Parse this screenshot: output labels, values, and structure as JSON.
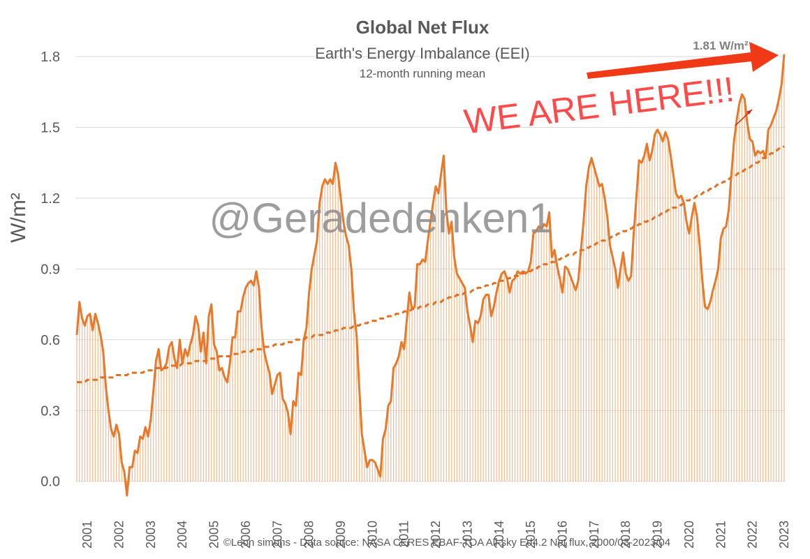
{
  "chart_data": {
    "type": "line",
    "title": "Global Net Flux",
    "subtitle": "Earth's Energy Imbalance (EEI)",
    "note": "12-month running mean",
    "y_label": "W/m²",
    "watermark": "@Geradedenken1",
    "annotation": "WE ARE HERE!!!",
    "end_label": "1.81 W/m²",
    "source": "©Leon simons - Data source: NASA CERES EBAF-TOA All-sky Ed4.2 Net flux, 2000/03-2023/04",
    "ylim": [
      -0.06,
      1.8
    ],
    "yticks": [
      {
        "value": 0,
        "label": "0.0"
      },
      0.3,
      0.6,
      0.9,
      1.2,
      1.5,
      1.8
    ],
    "grid": true,
    "categories": [
      null,
      null,
      null,
      null,
      "2001",
      null,
      null,
      null,
      null,
      null,
      null,
      null,
      null,
      null,
      null,
      null,
      "2002",
      null,
      null,
      null,
      null,
      null,
      null,
      null,
      null,
      null,
      null,
      null,
      "2003",
      null,
      null,
      null,
      null,
      null,
      null,
      null,
      null,
      null,
      null,
      null,
      "2004",
      null,
      null,
      null,
      null,
      null,
      null,
      null,
      null,
      null,
      null,
      null,
      "2005",
      null,
      null,
      null,
      null,
      null,
      null,
      null,
      null,
      null,
      null,
      null,
      "2006",
      null,
      null,
      null,
      null,
      null,
      null,
      null,
      null,
      null,
      null,
      null,
      "2007",
      null,
      null,
      null,
      null,
      null,
      null,
      null,
      null,
      null,
      null,
      null,
      "2008",
      null,
      null,
      null,
      null,
      null,
      null,
      null,
      null,
      null,
      null,
      null,
      "2009",
      null,
      null,
      null,
      null,
      null,
      null,
      null,
      null,
      null,
      null,
      null,
      "2010",
      null,
      null,
      null,
      null,
      null,
      null,
      null,
      null,
      null,
      null,
      null,
      "2011",
      null,
      null,
      null,
      null,
      null,
      null,
      null,
      null,
      null,
      null,
      null,
      "2012",
      null,
      null,
      null,
      null,
      null,
      null,
      null,
      null,
      null,
      null,
      null,
      "2013",
      null,
      null,
      null,
      null,
      null,
      null,
      null,
      null,
      null,
      null,
      null,
      "2014",
      null,
      null,
      null,
      null,
      null,
      null,
      null,
      null,
      null,
      null,
      null,
      "2015",
      null,
      null,
      null,
      null,
      null,
      null,
      null,
      null,
      null,
      null,
      null,
      "2016",
      null,
      null,
      null,
      null,
      null,
      null,
      null,
      null,
      null,
      null,
      null,
      "2017",
      null,
      null,
      null,
      null,
      null,
      null,
      null,
      null,
      null,
      null,
      null,
      "2018",
      null,
      null,
      null,
      null,
      null,
      null,
      null,
      null,
      null,
      null,
      null,
      "2019",
      null,
      null,
      null,
      null,
      null,
      null,
      null,
      null,
      null,
      null,
      null,
      "2020",
      null,
      null,
      null,
      null,
      null,
      null,
      null,
      null,
      null,
      null,
      null,
      "2021",
      null,
      null,
      null,
      null,
      null,
      null,
      null,
      null,
      null,
      null,
      null,
      "2022",
      null,
      null,
      null,
      null,
      null,
      null,
      null,
      null,
      null,
      null,
      null,
      "2023"
    ],
    "series": [
      {
        "color": "#e8782a",
        "bar_color": "#f4b98c",
        "bars": true,
        "values": [
          0.62,
          0.76,
          0.69,
          0.66,
          0.7,
          0.71,
          0.64,
          0.71,
          0.67,
          0.62,
          0.55,
          0.4,
          0.3,
          0.22,
          0.19,
          0.24,
          0.2,
          0.08,
          0.04,
          -0.06,
          0.06,
          0.06,
          0.13,
          0.12,
          0.19,
          0.18,
          0.23,
          0.19,
          0.26,
          0.38,
          0.51,
          0.56,
          0.47,
          0.48,
          0.5,
          0.57,
          0.59,
          0.52,
          0.48,
          0.6,
          0.5,
          0.56,
          0.53,
          0.58,
          0.62,
          0.7,
          0.66,
          0.55,
          0.63,
          0.5,
          0.7,
          0.75,
          0.58,
          0.55,
          0.47,
          0.48,
          0.44,
          0.42,
          0.5,
          0.61,
          0.61,
          0.72,
          0.72,
          0.78,
          0.82,
          0.84,
          0.85,
          0.83,
          0.89,
          0.82,
          0.65,
          0.55,
          0.5,
          0.46,
          0.37,
          0.41,
          0.45,
          0.46,
          0.35,
          0.33,
          0.29,
          0.2,
          0.34,
          0.32,
          0.46,
          0.45,
          0.6,
          0.65,
          0.8,
          0.9,
          0.96,
          1.02,
          1.18,
          1.25,
          1.28,
          1.26,
          1.28,
          1.26,
          1.35,
          1.3,
          1.2,
          1.1,
          1.04,
          1.0,
          0.9,
          0.72,
          0.62,
          0.4,
          0.2,
          0.13,
          0.06,
          0.09,
          0.09,
          0.08,
          0.05,
          0.02,
          0.18,
          0.22,
          0.32,
          0.34,
          0.48,
          0.5,
          0.53,
          0.59,
          0.56,
          0.68,
          0.8,
          0.73,
          0.74,
          0.92,
          0.92,
          0.94,
          0.93,
          1.02,
          1.1,
          1.18,
          1.25,
          1.22,
          1.3,
          1.38,
          1.15,
          1.05,
          1.1,
          0.95,
          0.88,
          0.86,
          0.84,
          0.82,
          0.72,
          0.66,
          0.59,
          0.68,
          0.67,
          0.7,
          0.77,
          0.79,
          0.79,
          0.7,
          0.74,
          0.8,
          0.85,
          0.88,
          0.89,
          0.86,
          0.8,
          0.85,
          0.86,
          0.89,
          0.88,
          0.89,
          0.88,
          0.89,
          0.93,
          1.05,
          1.06,
          1.08,
          1.07,
          1.09,
          1.08,
          1.14,
          0.95,
          0.98,
          0.91,
          0.86,
          0.8,
          0.91,
          0.9,
          0.87,
          0.84,
          0.81,
          0.85,
          0.98,
          1.1,
          1.25,
          1.33,
          1.37,
          1.33,
          1.29,
          1.25,
          1.26,
          1.2,
          1.12,
          1.0,
          0.95,
          0.9,
          0.82,
          0.9,
          0.97,
          0.88,
          0.85,
          0.87,
          1.05,
          1.2,
          1.36,
          1.35,
          1.38,
          1.43,
          1.36,
          1.4,
          1.47,
          1.49,
          1.47,
          1.44,
          1.48,
          1.45,
          1.38,
          1.3,
          1.22,
          1.2,
          1.21,
          1.18,
          1.1,
          1.05,
          1.12,
          1.18,
          1.12,
          1.0,
          0.85,
          0.74,
          0.73,
          0.76,
          0.81,
          0.85,
          0.9,
          1.03,
          1.07,
          1.08,
          1.15,
          1.3,
          1.44,
          1.53,
          1.6,
          1.64,
          1.62,
          1.52,
          1.45,
          1.44,
          1.38,
          1.4,
          1.39,
          1.4,
          1.37,
          1.49,
          1.51,
          1.54,
          1.57,
          1.62,
          1.68,
          1.81
        ]
      },
      {
        "color": "#e07020",
        "dashed": true,
        "values": [
          0.42,
          0.42,
          0.42,
          0.42,
          0.43,
          0.43,
          0.43,
          0.43,
          0.43,
          0.44,
          0.44,
          0.44,
          0.44,
          0.44,
          0.44,
          0.45,
          0.45,
          0.45,
          0.45,
          0.45,
          0.46,
          0.46,
          0.46,
          0.46,
          0.46,
          0.46,
          0.47,
          0.47,
          0.47,
          0.47,
          0.48,
          0.48,
          0.48,
          0.48,
          0.48,
          0.49,
          0.49,
          0.49,
          0.49,
          0.49,
          0.5,
          0.5,
          0.5,
          0.5,
          0.5,
          0.51,
          0.51,
          0.51,
          0.51,
          0.51,
          0.52,
          0.52,
          0.52,
          0.52,
          0.53,
          0.53,
          0.53,
          0.53,
          0.53,
          0.54,
          0.54,
          0.54,
          0.54,
          0.55,
          0.55,
          0.55,
          0.55,
          0.56,
          0.56,
          0.56,
          0.56,
          0.57,
          0.57,
          0.57,
          0.57,
          0.58,
          0.58,
          0.58,
          0.58,
          0.59,
          0.59,
          0.59,
          0.59,
          0.6,
          0.6,
          0.6,
          0.6,
          0.61,
          0.61,
          0.61,
          0.62,
          0.62,
          0.62,
          0.62,
          0.63,
          0.63,
          0.63,
          0.63,
          0.64,
          0.64,
          0.64,
          0.65,
          0.65,
          0.65,
          0.65,
          0.66,
          0.66,
          0.66,
          0.67,
          0.67,
          0.67,
          0.68,
          0.68,
          0.68,
          0.68,
          0.69,
          0.69,
          0.69,
          0.7,
          0.7,
          0.7,
          0.71,
          0.71,
          0.71,
          0.72,
          0.72,
          0.72,
          0.73,
          0.73,
          0.73,
          0.74,
          0.74,
          0.74,
          0.75,
          0.75,
          0.75,
          0.76,
          0.76,
          0.76,
          0.77,
          0.77,
          0.78,
          0.78,
          0.78,
          0.79,
          0.79,
          0.79,
          0.8,
          0.8,
          0.8,
          0.81,
          0.81,
          0.82,
          0.82,
          0.82,
          0.83,
          0.83,
          0.83,
          0.84,
          0.84,
          0.85,
          0.85,
          0.85,
          0.86,
          0.86,
          0.87,
          0.87,
          0.87,
          0.88,
          0.88,
          0.89,
          0.89,
          0.89,
          0.9,
          0.9,
          0.91,
          0.91,
          0.92,
          0.92,
          0.92,
          0.93,
          0.93,
          0.94,
          0.94,
          0.95,
          0.95,
          0.96,
          0.96,
          0.96,
          0.97,
          0.97,
          0.98,
          0.98,
          0.99,
          0.99,
          1.0,
          1.0,
          1.01,
          1.01,
          1.02,
          1.02,
          1.03,
          1.03,
          1.04,
          1.04,
          1.05,
          1.05,
          1.06,
          1.06,
          1.07,
          1.07,
          1.08,
          1.08,
          1.09,
          1.09,
          1.1,
          1.1,
          1.11,
          1.11,
          1.12,
          1.12,
          1.13,
          1.14,
          1.14,
          1.15,
          1.15,
          1.16,
          1.16,
          1.17,
          1.17,
          1.18,
          1.19,
          1.19,
          1.2,
          1.2,
          1.21,
          1.21,
          1.22,
          1.23,
          1.23,
          1.24,
          1.24,
          1.25,
          1.26,
          1.26,
          1.27,
          1.27,
          1.28,
          1.29,
          1.29,
          1.3,
          1.31,
          1.31,
          1.32,
          1.33,
          1.33,
          1.34,
          1.35,
          1.35,
          1.36,
          1.37,
          1.37,
          1.38,
          1.39,
          1.39,
          1.4,
          1.41,
          1.41,
          1.42
        ]
      }
    ]
  }
}
